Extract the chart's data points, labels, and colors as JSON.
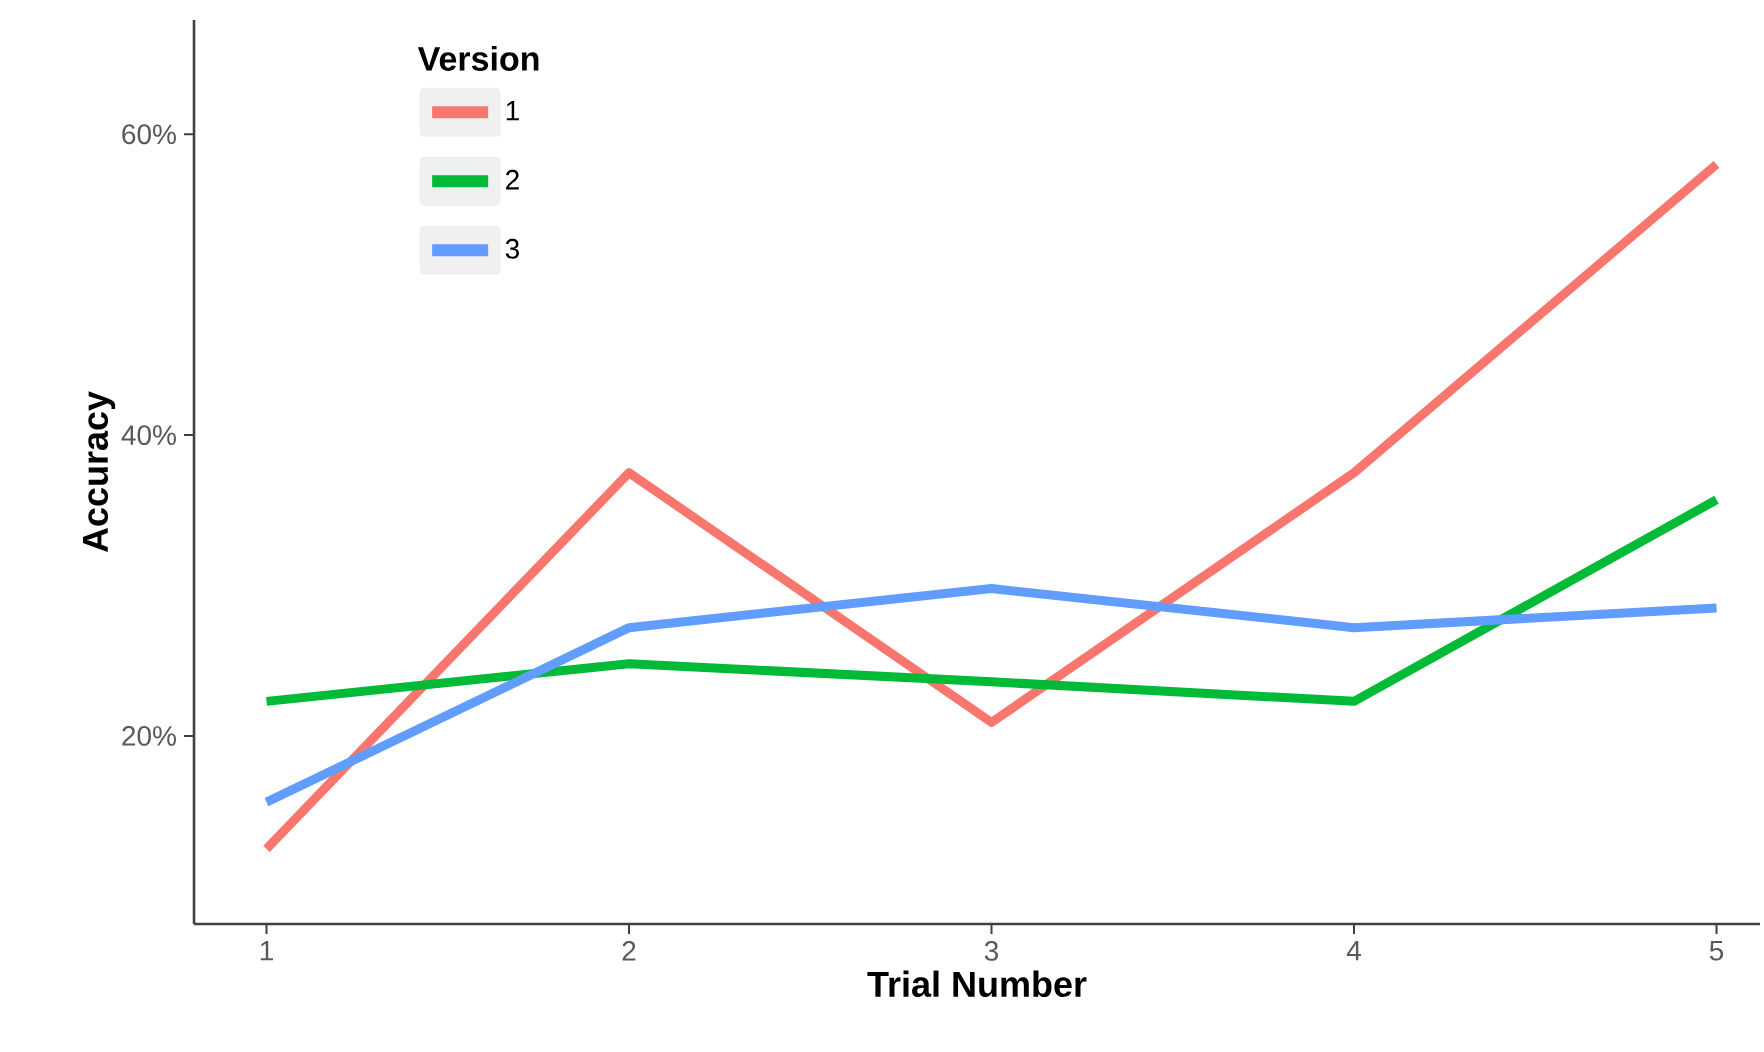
{
  "chart_data": {
    "type": "line",
    "xlabel": "Trial Number",
    "ylabel": "Accuracy",
    "legend_title": "Version",
    "x": [
      1,
      2,
      3,
      4,
      5
    ],
    "series": [
      {
        "name": "1",
        "color": "#f8766d",
        "values": [
          12.5,
          37.5,
          20.9,
          37.5,
          58.0
        ]
      },
      {
        "name": "2",
        "color": "#00ba38",
        "values": [
          22.3,
          24.8,
          23.6,
          22.3,
          35.7
        ]
      },
      {
        "name": "3",
        "color": "#619cff",
        "values": [
          15.6,
          27.2,
          29.8,
          27.2,
          28.5
        ]
      }
    ],
    "xlim": [
      0.8,
      5.12
    ],
    "ylim": [
      7.5,
      67.6
    ],
    "xticks": [
      1,
      2,
      3,
      4,
      5
    ],
    "yticks": [
      {
        "value": 20,
        "label": "20%"
      },
      {
        "value": 40,
        "label": "40%"
      },
      {
        "value": 60,
        "label": "60%"
      }
    ],
    "grid": false,
    "legend": "top left",
    "marker": "none",
    "line_style": "solid"
  }
}
